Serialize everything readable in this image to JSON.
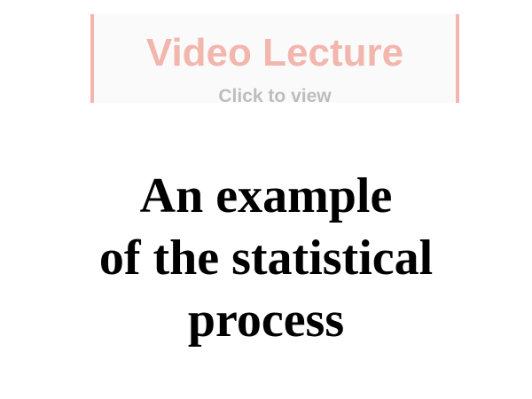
{
  "video_banner": {
    "title": "Video Lecture",
    "subtitle": "Click to view",
    "accent_color": "#f2b6ad",
    "subtitle_color": "#bdbdbd"
  },
  "slide": {
    "title_lines": [
      "An example",
      "of the statistical",
      "process"
    ]
  }
}
